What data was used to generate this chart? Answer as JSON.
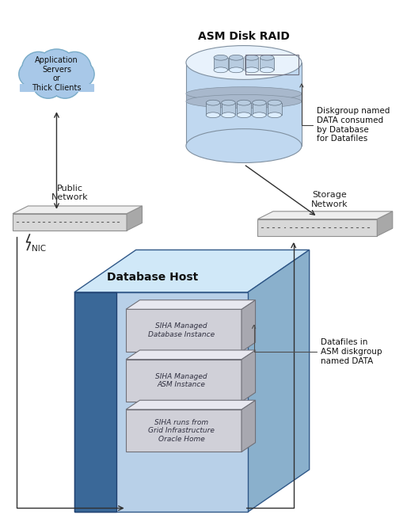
{
  "bg_color": "#ffffff",
  "cloud_label": "Application\nServers\nor\nThick Clients",
  "cloud_color": "#a8c8e8",
  "cloud_border": "#7aacc8",
  "asm_disk_label": "ASM Disk RAID",
  "asm_annotation": "Diskgroup named\nDATA consumed\nby Database\nfor Datafiles",
  "switch_left_label": "Public\nNetwork",
  "switch_right_label": "Storage\nNetwork",
  "nic_label": "NIC",
  "db_host_label": "Database Host",
  "layers": [
    "SIHA Managed\nDatabase Instance",
    "SIHA Managed\nASM Instance",
    "SIHA runs from\nGrid Infrastructure\nOracle Home"
  ],
  "datafiles_annotation": "Datafiles in\nASM diskgroup\nnamed DATA",
  "encl_color": "#c0d8f0",
  "encl_top": "#e8f2fc",
  "encl_stripe": "#a8b8cc",
  "cyl_color": "#b8cce0",
  "cyl_top": "#ddeeff",
  "layer_front": "#d0d0d8",
  "layer_side": "#a8a8b0",
  "layer_top_c": "#e8e8f0",
  "db_front": "#b8d0e8",
  "db_left": "#3a6898",
  "db_top": "#d0e8f8",
  "db_right": "#8ab0cc",
  "sw_front": "#d8d8d8",
  "sw_side": "#a8a8a8",
  "sw_top": "#eeeeee",
  "arrow_color": "#303030"
}
